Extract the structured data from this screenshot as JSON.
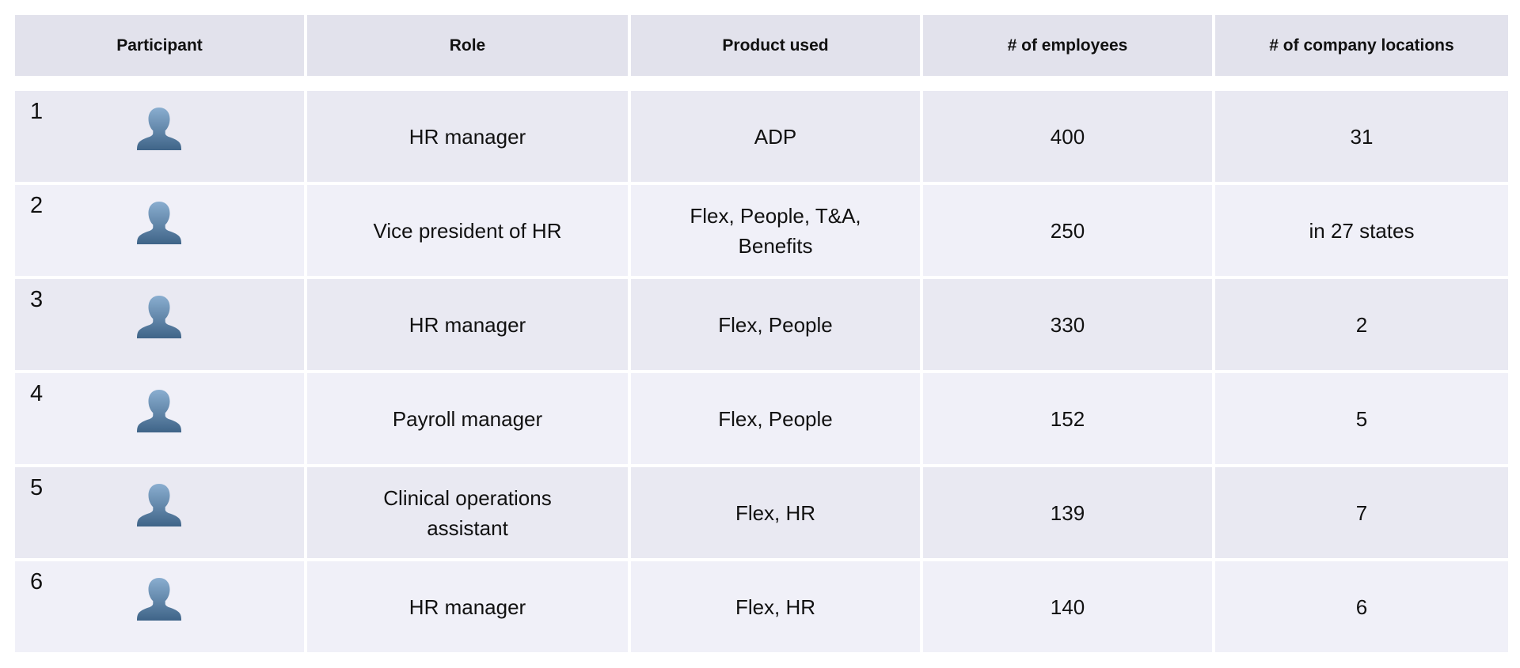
{
  "table": {
    "headers": {
      "participant": "Participant",
      "role": "Role",
      "product": "Product used",
      "employees": "# of employees",
      "locations": "# of company locations"
    },
    "rows": [
      {
        "participant": "1",
        "avatar_icon": "user-silhouette-icon",
        "role": "HR manager",
        "product": "ADP",
        "employees": "400",
        "locations": "31"
      },
      {
        "participant": "2",
        "avatar_icon": "user-silhouette-icon",
        "role": "Vice president of HR",
        "product": "Flex, People, T&A,\nBenefits",
        "employees": "250",
        "locations": "in 27 states"
      },
      {
        "participant": "3",
        "avatar_icon": "user-silhouette-icon",
        "role": "HR manager",
        "product": "Flex, People",
        "employees": "330",
        "locations": "2"
      },
      {
        "participant": "4",
        "avatar_icon": "user-silhouette-icon",
        "role": "Payroll manager",
        "product": "Flex, People",
        "employees": "152",
        "locations": "5"
      },
      {
        "participant": "5",
        "avatar_icon": "user-silhouette-icon",
        "role": "Clinical operations\nassistant",
        "product": "Flex, HR",
        "employees": "139",
        "locations": "7"
      },
      {
        "participant": "6",
        "avatar_icon": "user-silhouette-icon",
        "role": "HR manager",
        "product": "Flex, HR",
        "employees": "140",
        "locations": "6"
      }
    ]
  },
  "colors": {
    "header_bg": "#e2e2ec",
    "row_odd_bg": "#e9e9f2",
    "row_even_bg": "#f0f0f8",
    "avatar_top": "#8aaed0",
    "avatar_bottom": "#3f6488"
  }
}
